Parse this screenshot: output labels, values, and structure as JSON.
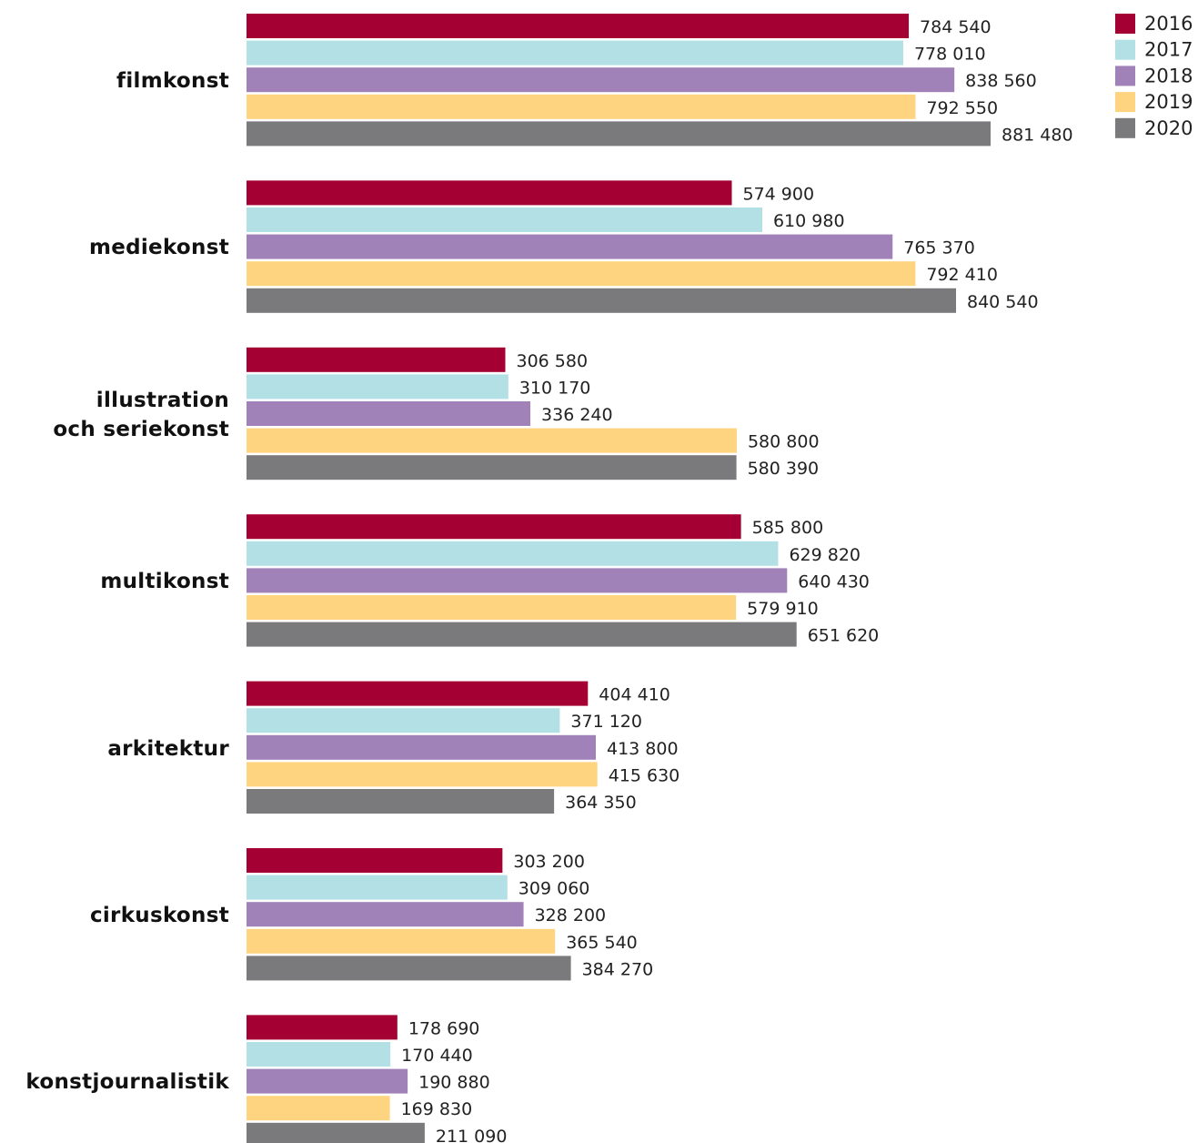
{
  "chart_data": {
    "type": "bar",
    "orientation": "horizontal",
    "categories": [
      "filmkonst",
      "mediekonst",
      "illustration\noch seriekonst",
      "multikonst",
      "arkitektur",
      "cirkuskonst",
      "konstjournalistik"
    ],
    "series": [
      {
        "name": "2016",
        "color": "#a50034",
        "values": [
          784540,
          574900,
          306580,
          585800,
          404410,
          303200,
          178690
        ],
        "value_labels": [
          "784 540",
          "574 900",
          "306 580",
          "585 800",
          "404 410",
          "303 200",
          "178 690"
        ]
      },
      {
        "name": "2017",
        "color": "#b3e0e4",
        "values": [
          778010,
          610980,
          310170,
          629820,
          371120,
          309060,
          170440
        ],
        "value_labels": [
          "778 010",
          "610 980",
          "310 170",
          "629 820",
          "371 120",
          "309 060",
          "170 440"
        ]
      },
      {
        "name": "2018",
        "color": "#a082b9",
        "values": [
          838560,
          765370,
          336240,
          640430,
          413800,
          328200,
          190880
        ],
        "value_labels": [
          "838 560",
          "765 370",
          "336 240",
          "640 430",
          "413 800",
          "328 200",
          "190 880"
        ]
      },
      {
        "name": "2019",
        "color": "#ffd480",
        "values": [
          792550,
          792410,
          580800,
          579910,
          415630,
          365540,
          169830
        ],
        "value_labels": [
          "792 550",
          "792 410",
          "580 800",
          "579 910",
          "415 630",
          "365 540",
          "169 830"
        ]
      },
      {
        "name": "2020",
        "color": "#7a797b",
        "values": [
          881480,
          840540,
          580390,
          651620,
          364350,
          384270,
          211090
        ],
        "value_labels": [
          "881 480",
          "840 540",
          "580 390",
          "651 620",
          "364 350",
          "384 270",
          "211 090"
        ]
      }
    ],
    "legend": "top-right"
  }
}
